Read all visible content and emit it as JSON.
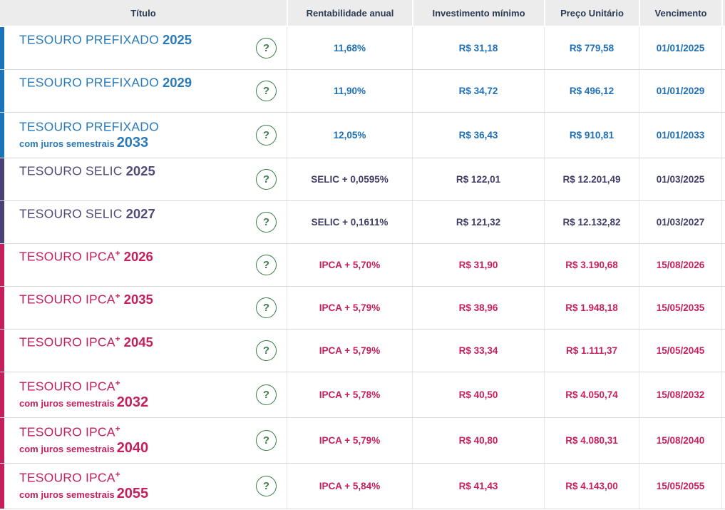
{
  "table": {
    "help_icon": "?",
    "columns": [
      {
        "label": "Título"
      },
      {
        "label": "Rentabilidade anual"
      },
      {
        "label": "Investimento mínimo"
      },
      {
        "label": "Preço Unitário"
      },
      {
        "label": "Vencimento"
      }
    ],
    "colors": {
      "prefixado_accent": "#1a73b9",
      "selic_accent": "#4a4274",
      "ipca_accent": "#c41e5c",
      "help_green": "#3f7e4b",
      "header_text": "#2b3a52",
      "header_bg": "#ececec"
    },
    "rows": [
      {
        "group": "prefixado",
        "name": "TESOURO PREFIXADO",
        "sup": "",
        "year_inline": "2025",
        "subtitle": "",
        "year_below": "",
        "rate": "11,68%",
        "min_investment": "R$ 31,18",
        "unit_price": "R$ 779,58",
        "maturity": "01/01/2025"
      },
      {
        "group": "prefixado",
        "name": "TESOURO PREFIXADO",
        "sup": "",
        "year_inline": "2029",
        "subtitle": "",
        "year_below": "",
        "rate": "11,90%",
        "min_investment": "R$ 34,72",
        "unit_price": "R$ 496,12",
        "maturity": "01/01/2029"
      },
      {
        "group": "prefixado",
        "name": "TESOURO PREFIXADO",
        "sup": "",
        "year_inline": "",
        "subtitle": "com juros semestrais",
        "year_below": "2033",
        "rate": "12,05%",
        "min_investment": "R$ 36,43",
        "unit_price": "R$ 910,81",
        "maturity": "01/01/2033"
      },
      {
        "group": "selic",
        "name": "TESOURO SELIC",
        "sup": "",
        "year_inline": "2025",
        "subtitle": "",
        "year_below": "",
        "rate": "SELIC + 0,0595%",
        "min_investment": "R$ 122,01",
        "unit_price": "R$ 12.201,49",
        "maturity": "01/03/2025"
      },
      {
        "group": "selic",
        "name": "TESOURO SELIC",
        "sup": "",
        "year_inline": "2027",
        "subtitle": "",
        "year_below": "",
        "rate": "SELIC + 0,1611%",
        "min_investment": "R$ 121,32",
        "unit_price": "R$ 12.132,82",
        "maturity": "01/03/2027"
      },
      {
        "group": "ipca",
        "name": "TESOURO IPCA",
        "sup": "+",
        "year_inline": "2026",
        "subtitle": "",
        "year_below": "",
        "rate": "IPCA + 5,70%",
        "min_investment": "R$ 31,90",
        "unit_price": "R$ 3.190,68",
        "maturity": "15/08/2026"
      },
      {
        "group": "ipca",
        "name": "TESOURO IPCA",
        "sup": "+",
        "year_inline": "2035",
        "subtitle": "",
        "year_below": "",
        "rate": "IPCA + 5,79%",
        "min_investment": "R$ 38,96",
        "unit_price": "R$ 1.948,18",
        "maturity": "15/05/2035"
      },
      {
        "group": "ipca",
        "name": "TESOURO IPCA",
        "sup": "+",
        "year_inline": "2045",
        "subtitle": "",
        "year_below": "",
        "rate": "IPCA + 5,79%",
        "min_investment": "R$ 33,34",
        "unit_price": "R$ 1.111,37",
        "maturity": "15/05/2045"
      },
      {
        "group": "ipca",
        "name": "TESOURO IPCA",
        "sup": "+",
        "year_inline": "",
        "subtitle": "com juros semestrais",
        "year_below": "2032",
        "rate": "IPCA + 5,78%",
        "min_investment": "R$ 40,50",
        "unit_price": "R$ 4.050,74",
        "maturity": "15/08/2032"
      },
      {
        "group": "ipca",
        "name": "TESOURO IPCA",
        "sup": "+",
        "year_inline": "",
        "subtitle": "com juros semestrais",
        "year_below": "2040",
        "rate": "IPCA + 5,79%",
        "min_investment": "R$ 40,80",
        "unit_price": "R$ 4.080,31",
        "maturity": "15/08/2040"
      },
      {
        "group": "ipca",
        "name": "TESOURO IPCA",
        "sup": "+",
        "year_inline": "",
        "subtitle": "com juros semestrais",
        "year_below": "2055",
        "rate": "IPCA + 5,84%",
        "min_investment": "R$ 41,43",
        "unit_price": "R$ 4.143,00",
        "maturity": "15/05/2055"
      }
    ]
  }
}
